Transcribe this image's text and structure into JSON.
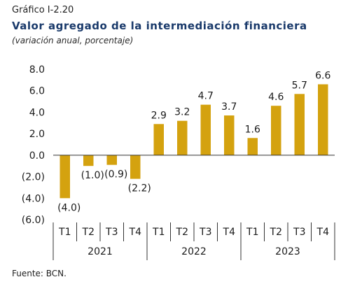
{
  "header": {
    "kicker": "Gráfico I-2.20",
    "title": "Valor agregado de la intermediación financiera",
    "subtitle": "(variación anual, porcentaje)"
  },
  "footer": {
    "source": "Fuente: BCN."
  },
  "colors": {
    "bar": "#D4A20F",
    "title": "#1a3a6b"
  },
  "chart_data": {
    "type": "bar",
    "categories": [
      "T1",
      "T2",
      "T3",
      "T4",
      "T1",
      "T2",
      "T3",
      "T4",
      "T1",
      "T2",
      "T3",
      "T4"
    ],
    "groups": [
      {
        "label": "2021",
        "span": 4
      },
      {
        "label": "2022",
        "span": 4
      },
      {
        "label": "2023",
        "span": 4
      }
    ],
    "values": [
      -4.0,
      -1.0,
      -0.9,
      -2.2,
      2.9,
      3.2,
      4.7,
      3.7,
      1.6,
      4.6,
      5.7,
      6.6
    ],
    "value_labels": [
      "(4.0)",
      "(1.0)",
      "(0.9)",
      "(2.2)",
      "2.9",
      "3.2",
      "4.7",
      "3.7",
      "1.6",
      "4.6",
      "5.7",
      "6.6"
    ],
    "yticks": [
      8,
      6,
      4,
      2,
      0,
      -2,
      -4,
      -6
    ],
    "ytick_labels": [
      "8.0",
      "6.0",
      "4.0",
      "2.0",
      "0.0",
      "(2.0)",
      "(4.0)",
      "(6.0)"
    ],
    "ylim": [
      -6,
      8
    ],
    "grid": false
  }
}
